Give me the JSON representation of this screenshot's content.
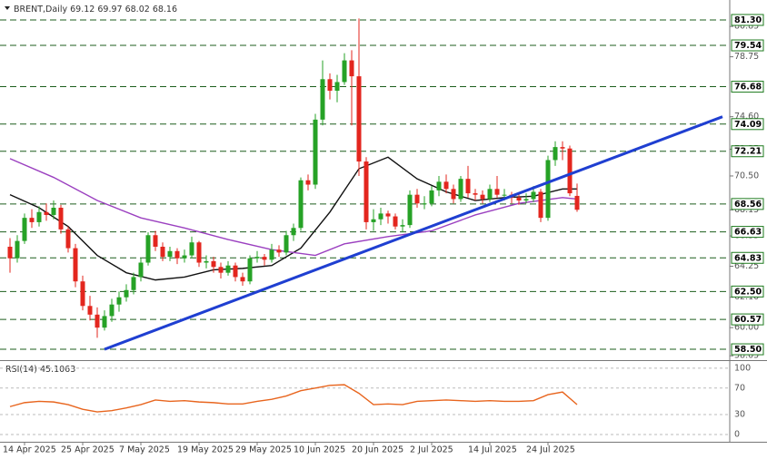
{
  "chart_data": {
    "type": "candlestick",
    "title": "BRENT,Daily",
    "ylim": [
      57.75,
      82.43
    ],
    "yticks": [
      80.85,
      78.75,
      {
        "value": 74.6,
        "label": "74.60"
      },
      72.35,
      {
        "value": 70.5,
        "label": "70.50"
      },
      68.15,
      66.35,
      64.25,
      {
        "value": 62.1,
        "label": "62.10"
      },
      {
        "value": 60,
        "label": "60.00"
      },
      58.05
    ],
    "levels": [
      {
        "value": 81.3,
        "label": "81.30"
      },
      79.54,
      76.68,
      74.09,
      72.21,
      68.56,
      66.63,
      64.83,
      {
        "value": 62.5,
        "label": "62.50"
      },
      60.57,
      {
        "value": 58.5,
        "label": "58.50"
      }
    ],
    "categories": [
      null,
      null,
      "14 Apr 2025",
      null,
      null,
      null,
      null,
      null,
      null,
      null,
      "25 Apr 2025",
      null,
      null,
      null,
      null,
      null,
      null,
      null,
      "7 May 2025",
      null,
      null,
      null,
      null,
      null,
      null,
      null,
      "19 May 2025",
      null,
      null,
      null,
      null,
      null,
      null,
      null,
      "29 May 2025",
      null,
      null,
      null,
      null,
      null,
      null,
      null,
      "10 Jun 2025",
      null,
      null,
      null,
      null,
      null,
      null,
      null,
      "20 Jun 2025",
      null,
      null,
      null,
      null,
      null,
      null,
      null,
      "2 Jul 2025",
      null,
      null,
      null,
      null,
      null,
      null,
      null,
      "14 Jul 2025",
      null,
      null,
      null,
      null,
      null,
      null,
      null,
      "24 Jul 2025",
      null,
      null,
      null,
      null
    ],
    "up_color": "#26a226",
    "down_color": "#e3261e",
    "candles": [
      [
        65.6,
        66.2,
        63.8,
        64.8
      ],
      [
        64.8,
        66.4,
        64.5,
        66.0
      ],
      [
        66.0,
        67.9,
        65.8,
        67.6
      ],
      [
        67.6,
        68.2,
        66.9,
        67.3
      ],
      [
        67.3,
        68.4,
        67.0,
        68.0
      ],
      [
        68.0,
        68.6,
        67.4,
        67.8
      ],
      [
        67.8,
        68.8,
        67.5,
        68.3
      ],
      [
        68.3,
        68.5,
        66.5,
        66.8
      ],
      [
        66.8,
        67.0,
        65.2,
        65.5
      ],
      [
        65.5,
        65.8,
        62.8,
        63.2
      ],
      [
        63.2,
        63.6,
        61.2,
        61.5
      ],
      [
        61.5,
        62.2,
        60.5,
        60.9
      ],
      [
        60.9,
        61.4,
        59.3,
        60.0
      ],
      [
        60.0,
        61.2,
        59.8,
        60.8
      ],
      [
        60.8,
        62.0,
        60.4,
        61.6
      ],
      [
        61.6,
        62.5,
        61.1,
        62.1
      ],
      [
        62.1,
        63.0,
        61.8,
        62.6
      ],
      [
        62.6,
        63.8,
        62.3,
        63.5
      ],
      [
        63.5,
        64.8,
        63.2,
        64.5
      ],
      [
        64.5,
        66.6,
        64.3,
        66.4
      ],
      [
        66.4,
        66.7,
        65.3,
        65.6
      ],
      [
        65.6,
        65.9,
        64.6,
        64.9
      ],
      [
        64.9,
        65.6,
        64.6,
        65.3
      ],
      [
        65.3,
        65.5,
        64.4,
        64.8
      ],
      [
        64.8,
        65.4,
        64.5,
        65.0
      ],
      [
        65.0,
        66.3,
        64.8,
        65.9
      ],
      [
        65.9,
        66.0,
        64.2,
        64.5
      ],
      [
        64.5,
        65.0,
        64.1,
        64.6
      ],
      [
        64.6,
        64.9,
        63.8,
        64.2
      ],
      [
        64.2,
        64.5,
        63.4,
        63.8
      ],
      [
        63.8,
        64.6,
        63.6,
        64.3
      ],
      [
        64.3,
        64.5,
        63.2,
        63.5
      ],
      [
        63.5,
        63.8,
        62.9,
        63.2
      ],
      [
        63.2,
        65.0,
        63.0,
        64.8
      ],
      [
        64.8,
        65.3,
        64.5,
        64.9
      ],
      [
        64.9,
        65.1,
        64.3,
        64.7
      ],
      [
        64.7,
        65.8,
        64.5,
        65.4
      ],
      [
        65.4,
        65.7,
        64.9,
        65.2
      ],
      [
        65.2,
        66.7,
        65.0,
        66.4
      ],
      [
        66.4,
        67.2,
        66.0,
        66.9
      ],
      [
        66.9,
        70.4,
        66.7,
        70.2
      ],
      [
        70.2,
        70.6,
        69.5,
        69.9
      ],
      [
        69.9,
        74.8,
        69.6,
        74.4
      ],
      [
        74.4,
        78.5,
        74.0,
        77.2
      ],
      [
        77.2,
        77.6,
        75.8,
        76.4
      ],
      [
        76.4,
        77.5,
        75.6,
        77.0
      ],
      [
        77.0,
        79.0,
        76.8,
        78.5
      ],
      [
        78.5,
        79.2,
        74.0,
        77.4
      ],
      [
        77.4,
        81.4,
        70.5,
        71.5
      ],
      [
        71.5,
        71.8,
        66.8,
        67.3
      ],
      [
        67.3,
        68.2,
        66.7,
        67.5
      ],
      [
        67.5,
        68.3,
        67.1,
        67.9
      ],
      [
        67.9,
        68.1,
        67.2,
        67.7
      ],
      [
        67.7,
        67.9,
        66.8,
        67.0
      ],
      [
        67.0,
        67.5,
        66.6,
        67.1
      ],
      [
        67.1,
        69.5,
        66.9,
        69.2
      ],
      [
        69.2,
        69.6,
        68.3,
        68.6
      ],
      [
        68.6,
        69.1,
        68.2,
        68.6
      ],
      [
        68.6,
        69.8,
        68.4,
        69.5
      ],
      [
        69.5,
        70.5,
        69.1,
        70.1
      ],
      [
        70.1,
        70.6,
        69.3,
        69.6
      ],
      [
        69.6,
        69.9,
        68.6,
        68.9
      ],
      [
        68.9,
        70.5,
        68.7,
        70.3
      ],
      [
        70.3,
        71.2,
        69.0,
        69.3
      ],
      [
        69.3,
        69.6,
        68.8,
        69.2
      ],
      [
        69.2,
        69.5,
        68.6,
        68.9
      ],
      [
        68.9,
        69.9,
        68.7,
        69.6
      ],
      [
        69.6,
        70.5,
        69.0,
        69.2
      ],
      [
        69.2,
        69.6,
        68.8,
        69.2
      ],
      [
        69.2,
        69.4,
        68.6,
        69.0
      ],
      [
        69.0,
        69.3,
        68.5,
        68.8
      ],
      [
        68.8,
        69.3,
        68.6,
        68.9
      ],
      [
        68.9,
        69.8,
        68.7,
        69.4
      ],
      [
        69.4,
        69.6,
        67.3,
        67.6
      ],
      [
        67.6,
        71.9,
        67.4,
        71.6
      ],
      [
        71.6,
        72.9,
        71.2,
        72.5
      ],
      [
        72.5,
        72.9,
        71.6,
        72.4
      ],
      [
        72.4,
        72.6,
        69.1,
        69.3
      ],
      [
        69.12,
        69.97,
        68.02,
        68.16
      ]
    ],
    "overlays": [
      {
        "color": "#111111",
        "x": [
          0,
          4,
          8,
          12,
          16,
          20,
          24,
          28,
          32,
          36,
          40,
          44,
          48,
          52,
          56,
          60,
          64,
          68,
          72,
          76,
          78
        ],
        "values": [
          69.2,
          68.3,
          67.0,
          65.0,
          63.8,
          63.3,
          63.5,
          64.0,
          64.1,
          64.3,
          65.5,
          68.0,
          71.0,
          71.8,
          70.3,
          69.4,
          68.8,
          69.0,
          69.1,
          69.6,
          69.6
        ]
      },
      {
        "color": "#9b40c0",
        "x": [
          0,
          6,
          12,
          18,
          24,
          30,
          36,
          42,
          46,
          52,
          58,
          64,
          70,
          76,
          78
        ],
        "values": [
          71.7,
          70.4,
          68.8,
          67.6,
          66.9,
          66.1,
          65.4,
          65.0,
          65.8,
          66.3,
          66.7,
          67.8,
          68.6,
          69.0,
          68.9
        ]
      }
    ],
    "trendline": {
      "color": "#1f3fd1",
      "x": [
        13,
        98
      ],
      "values": [
        58.5,
        74.6
      ]
    },
    "rsi": {
      "title": "RSI(14)",
      "color": "#e8651e",
      "ylim": [
        -11,
        108
      ],
      "yticks": [
        100,
        70,
        30,
        0
      ],
      "x": [
        0,
        2,
        4,
        6,
        8,
        10,
        12,
        14,
        16,
        18,
        20,
        22,
        24,
        26,
        28,
        30,
        32,
        34,
        36,
        38,
        40,
        42,
        44,
        46,
        48,
        50,
        52,
        54,
        56,
        58,
        60,
        62,
        64,
        66,
        68,
        70,
        72,
        74,
        76,
        78
      ],
      "values": [
        42,
        48,
        50,
        49,
        45,
        38,
        34,
        36,
        40,
        45,
        52,
        50,
        51,
        49,
        48,
        46,
        46,
        50,
        53,
        58,
        66,
        70,
        74,
        75,
        62,
        45,
        46,
        45,
        50,
        51,
        52,
        51,
        50,
        51,
        50,
        50,
        51,
        60,
        64,
        45.1063
      ]
    }
  }
}
